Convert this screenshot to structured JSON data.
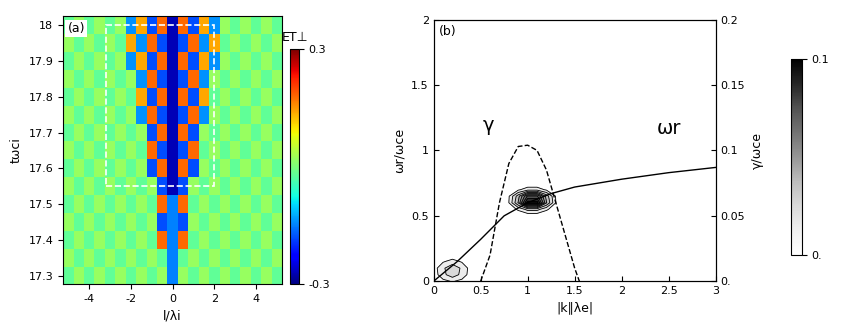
{
  "chart_data": [
    {
      "type": "heatmap",
      "title": "(a)",
      "x_label": "l/λi",
      "y_label": "tωci",
      "x": [
        -5,
        -4.5,
        -4,
        -3.5,
        -3,
        -2.5,
        -2,
        -1.5,
        -1,
        -0.5,
        0,
        0.5,
        1,
        1.5,
        2,
        2.5,
        3,
        3.5,
        4,
        4.5,
        5
      ],
      "y": [
        17.3,
        17.35,
        17.4,
        17.45,
        17.5,
        17.55,
        17.6,
        17.65,
        17.7,
        17.75,
        17.8,
        17.85,
        17.9,
        17.95,
        18
      ],
      "cells": [
        [
          -0.02,
          0.02,
          -0.02,
          0.02,
          -0.02,
          0.02,
          -0.02,
          0.02,
          -0.02,
          0.02,
          -0.15,
          0.02,
          -0.02,
          0.02,
          -0.02,
          0.02,
          -0.02,
          0.02,
          -0.02,
          0.02,
          -0.02
        ],
        [
          0.02,
          -0.02,
          0.02,
          -0.02,
          0.02,
          -0.02,
          0.02,
          -0.02,
          0.02,
          -0.02,
          -0.15,
          -0.02,
          0.02,
          -0.02,
          0.02,
          -0.02,
          0.02,
          -0.02,
          0.02,
          -0.02,
          0.02
        ],
        [
          -0.02,
          0.02,
          -0.02,
          0.02,
          -0.02,
          0.02,
          -0.02,
          0.02,
          -0.02,
          0.18,
          -0.15,
          0.18,
          -0.02,
          0.02,
          -0.02,
          0.02,
          -0.02,
          0.02,
          -0.02,
          0.02,
          -0.02
        ],
        [
          0.02,
          -0.02,
          0.02,
          -0.02,
          0.02,
          -0.02,
          0.02,
          -0.02,
          0.02,
          -0.18,
          -0.15,
          -0.18,
          0.02,
          -0.02,
          0.02,
          -0.02,
          0.02,
          -0.02,
          0.02,
          -0.02,
          0.02
        ],
        [
          -0.02,
          0.02,
          -0.02,
          0.02,
          -0.02,
          0.02,
          -0.02,
          0.02,
          -0.02,
          0.18,
          -0.15,
          0.18,
          -0.02,
          0.02,
          -0.02,
          0.02,
          -0.02,
          0.02,
          -0.02,
          0.02,
          -0.02
        ],
        [
          0.02,
          -0.02,
          0.02,
          -0.02,
          0.02,
          -0.02,
          0.02,
          -0.02,
          0.02,
          -0.18,
          -0.27,
          -0.18,
          0.02,
          -0.02,
          0.02,
          -0.02,
          0.02,
          -0.02,
          0.02,
          -0.02,
          0.02
        ],
        [
          -0.02,
          0.02,
          -0.02,
          0.02,
          -0.02,
          0.02,
          -0.02,
          0.02,
          -0.18,
          0.18,
          -0.27,
          0.18,
          -0.18,
          0.02,
          -0.02,
          0.02,
          -0.02,
          0.02,
          -0.02,
          0.02,
          -0.02
        ],
        [
          0.02,
          -0.02,
          0.02,
          -0.02,
          0.02,
          -0.02,
          0.02,
          -0.02,
          0.18,
          -0.18,
          -0.27,
          -0.18,
          0.18,
          -0.02,
          0.02,
          -0.02,
          0.02,
          -0.02,
          0.02,
          -0.02,
          0.02
        ],
        [
          -0.02,
          0.02,
          -0.02,
          0.02,
          -0.02,
          0.02,
          -0.02,
          0.02,
          -0.18,
          0.18,
          -0.27,
          0.18,
          -0.18,
          0.02,
          -0.02,
          0.02,
          -0.02,
          0.02,
          -0.02,
          0.02,
          -0.02
        ],
        [
          0.02,
          -0.02,
          0.02,
          -0.02,
          0.02,
          -0.02,
          0.02,
          -0.14,
          0.18,
          -0.18,
          -0.27,
          -0.18,
          0.18,
          -0.14,
          0.02,
          -0.02,
          0.02,
          -0.02,
          0.02,
          -0.02,
          0.02
        ],
        [
          -0.02,
          0.02,
          -0.02,
          0.02,
          -0.02,
          0.02,
          -0.02,
          0.14,
          -0.18,
          0.18,
          -0.27,
          0.18,
          -0.18,
          0.14,
          -0.02,
          0.02,
          -0.02,
          0.02,
          -0.02,
          0.02,
          -0.02
        ],
        [
          0.02,
          -0.02,
          0.02,
          -0.02,
          0.02,
          -0.02,
          0.02,
          -0.14,
          0.18,
          -0.18,
          -0.27,
          -0.18,
          0.18,
          -0.14,
          0.02,
          -0.02,
          0.02,
          -0.02,
          0.02,
          -0.02,
          0.02
        ],
        [
          -0.02,
          0.02,
          -0.02,
          0.02,
          -0.02,
          0.02,
          -0.14,
          0.14,
          -0.18,
          0.18,
          -0.27,
          0.18,
          -0.18,
          0.14,
          -0.14,
          0.02,
          -0.02,
          0.02,
          -0.02,
          0.02,
          -0.02
        ],
        [
          0.02,
          -0.02,
          0.02,
          -0.02,
          0.02,
          -0.02,
          0.14,
          -0.14,
          0.18,
          -0.18,
          -0.27,
          -0.18,
          0.18,
          -0.14,
          0.14,
          -0.02,
          0.02,
          -0.02,
          0.02,
          -0.02,
          0.02
        ],
        [
          -0.02,
          0.02,
          -0.02,
          0.02,
          -0.02,
          0.02,
          -0.14,
          0.14,
          -0.18,
          0.18,
          -0.27,
          0.18,
          -0.18,
          0.14,
          -0.14,
          0.02,
          -0.02,
          0.02,
          -0.02,
          0.02,
          -0.02
        ]
      ],
      "xlim": [
        -5.25,
        5.25
      ],
      "ylim": [
        17.275,
        18.025
      ],
      "xticks": [
        -4,
        -2,
        0,
        2,
        4
      ],
      "yticks": [
        17.3,
        17.4,
        17.5,
        17.6,
        17.7,
        17.8,
        17.9,
        18
      ],
      "colorbar": {
        "label": "ET⊥",
        "range": [
          -0.3,
          0.3
        ],
        "ticks": [
          -0.3,
          0.3
        ]
      },
      "highlight_box": {
        "x": [
          -3.2,
          2
        ],
        "y": [
          17.55,
          18
        ]
      }
    },
    {
      "type": "contour",
      "title": "(b)",
      "x_label": "|k∥λe|",
      "y_label": "ωr/ωce",
      "y2_label": "γ/ωce",
      "xlim": [
        0,
        3
      ],
      "xticks": [
        0,
        0.5,
        1,
        1.5,
        2,
        2.5,
        3
      ],
      "ylim": [
        0,
        2
      ],
      "yticks": [
        0,
        0.5,
        1,
        1.5,
        2
      ],
      "y2lim": [
        0,
        0.2
      ],
      "y2ticks": [
        {
          "value": 0,
          "label": "0."
        },
        0.05,
        0.1,
        0.15,
        0.2
      ],
      "grid_x": [
        0,
        0.1,
        0.2,
        0.3,
        0.4,
        0.5,
        0.6,
        0.7,
        0.8,
        0.9,
        1.0,
        1.1,
        1.2,
        1.3,
        1.4,
        1.5,
        1.6
      ],
      "grid_y": [
        0,
        0.05,
        0.1,
        0.15,
        0.2,
        0.25,
        0.3,
        0.35,
        0.4,
        0.45,
        0.5,
        0.55,
        0.6,
        0.65,
        0.7,
        0.75,
        0.8,
        0.85
      ],
      "cells": [
        [
          0.002,
          0.007,
          0.011,
          0.007,
          0.002,
          0,
          0,
          0,
          0,
          0,
          0,
          0,
          0,
          0,
          0,
          0,
          0
        ],
        [
          0.004,
          0.017,
          0.026,
          0.017,
          0.004,
          0,
          0,
          0,
          0,
          0,
          0,
          0,
          0,
          0,
          0,
          0,
          0
        ],
        [
          0.005,
          0.018,
          0.028,
          0.018,
          0.005,
          0.001,
          0,
          0,
          0,
          0,
          0,
          0,
          0,
          0,
          0,
          0,
          0
        ],
        [
          0.002,
          0.009,
          0.014,
          0.009,
          0.002,
          0,
          0,
          0,
          0,
          0,
          0,
          0,
          0,
          0,
          0,
          0,
          0
        ],
        [
          0.001,
          0.002,
          0.003,
          0.002,
          0.001,
          0,
          0,
          0,
          0,
          0,
          0,
          0,
          0,
          0,
          0,
          0,
          0
        ],
        [
          0,
          0,
          0,
          0,
          0,
          0,
          0,
          0,
          0,
          0,
          0,
          0,
          0,
          0,
          0,
          0,
          0
        ],
        [
          0,
          0,
          0,
          0,
          0,
          0,
          0,
          0,
          0,
          0,
          0,
          0,
          0,
          0,
          0,
          0,
          0
        ],
        [
          0,
          0,
          0,
          0,
          0,
          0,
          0,
          0,
          0,
          0,
          0,
          0,
          0,
          0,
          0,
          0,
          0
        ],
        [
          0,
          0,
          0,
          0,
          0,
          0,
          0,
          0,
          0,
          0,
          0,
          0,
          0,
          0,
          0,
          0,
          0
        ],
        [
          0,
          0,
          0,
          0,
          0,
          0,
          0,
          0,
          0,
          0,
          0,
          0,
          0,
          0,
          0,
          0,
          0
        ],
        [
          0,
          0,
          0,
          0,
          0,
          0,
          0,
          0,
          0,
          0.001,
          0.002,
          0.002,
          0.001,
          0,
          0,
          0,
          0
        ],
        [
          0,
          0,
          0,
          0,
          0,
          0,
          0,
          0,
          0.003,
          0.012,
          0.024,
          0.024,
          0.012,
          0.003,
          0,
          0,
          0
        ],
        [
          0,
          0,
          0,
          0,
          0,
          0,
          0,
          0.001,
          0.01,
          0.041,
          0.095,
          0.095,
          0.041,
          0.01,
          0.001,
          0,
          0
        ],
        [
          0,
          0,
          0,
          0,
          0,
          0,
          0,
          0.001,
          0.009,
          0.036,
          0.072,
          0.072,
          0.036,
          0.009,
          0.001,
          0,
          0
        ],
        [
          0,
          0,
          0,
          0,
          0,
          0,
          0,
          0,
          0.002,
          0.008,
          0.016,
          0.016,
          0.008,
          0.002,
          0,
          0,
          0
        ],
        [
          0,
          0,
          0,
          0,
          0,
          0,
          0,
          0,
          0,
          0,
          0,
          0,
          0,
          0,
          0,
          0,
          0
        ],
        [
          0,
          0,
          0,
          0,
          0,
          0,
          0,
          0,
          0,
          0,
          0,
          0,
          0,
          0,
          0,
          0,
          0
        ],
        [
          0,
          0,
          0,
          0,
          0,
          0,
          0,
          0,
          0,
          0,
          0,
          0,
          0,
          0,
          0,
          0,
          0
        ]
      ],
      "colorbar": {
        "range": [
          0,
          0.1
        ],
        "ticks": [
          {
            "value": 0,
            "label": "0."
          },
          0.1
        ]
      },
      "series": [
        {
          "name": "ωr",
          "color": "black",
          "line_style": "solid",
          "x": [
            0,
            0.25,
            0.5,
            0.75,
            1,
            1.25,
            1.5,
            2,
            2.5,
            3
          ],
          "values": [
            0,
            0.15,
            0.32,
            0.5,
            0.6,
            0.67,
            0.72,
            0.78,
            0.83,
            0.87
          ]
        },
        {
          "name": "γ",
          "color": "black",
          "line_style": "dashed",
          "axis": "y2",
          "x": [
            0.5,
            0.6,
            0.7,
            0.8,
            0.9,
            1.0,
            1.1,
            1.2,
            1.3,
            1.4,
            1.5,
            1.55
          ],
          "values": [
            0,
            0.02,
            0.06,
            0.09,
            0.103,
            0.104,
            0.1,
            0.085,
            0.06,
            0.035,
            0.01,
            0
          ]
        }
      ]
    }
  ]
}
